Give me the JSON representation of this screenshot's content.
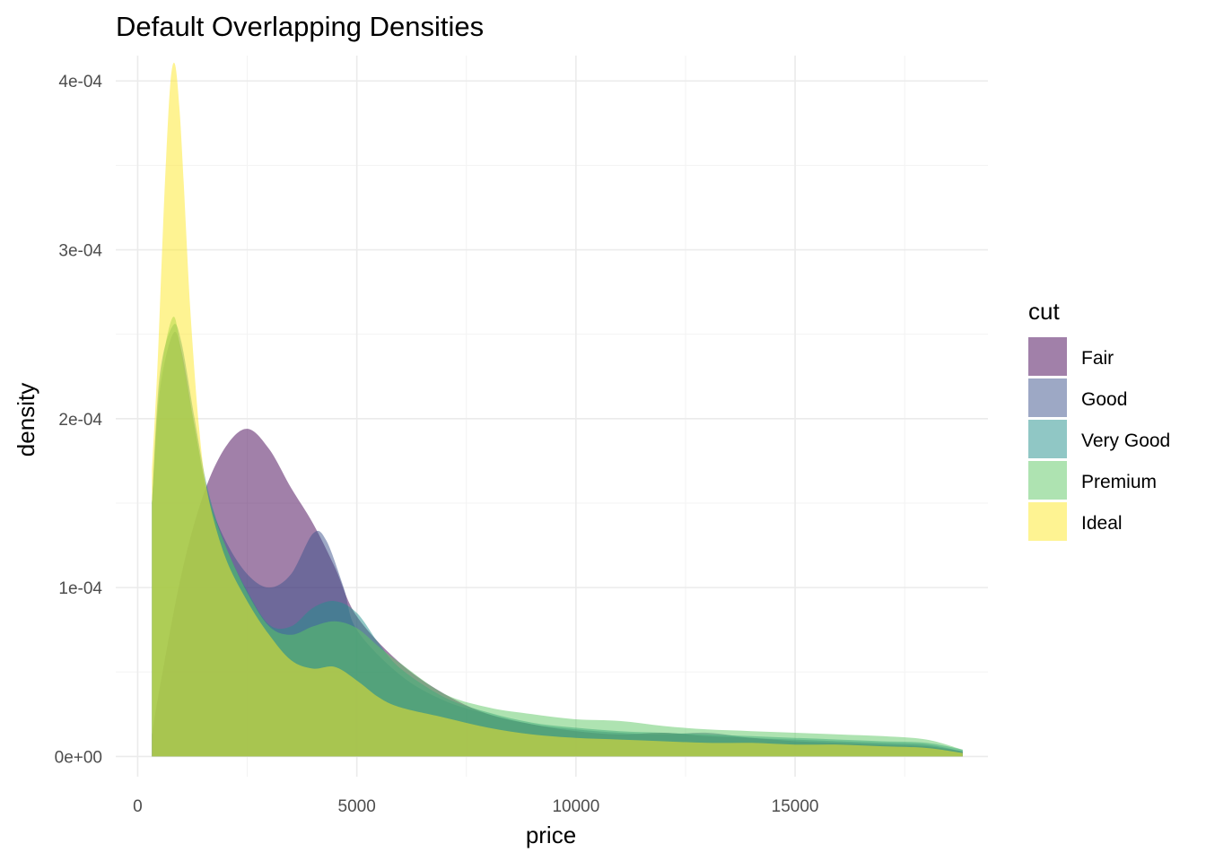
{
  "chart_data": {
    "type": "area",
    "title": "Default Overlapping Densities",
    "xlabel": "price",
    "ylabel": "density",
    "xlim": [
      -500,
      19400
    ],
    "ylim": [
      -1.2e-05,
      0.000415
    ],
    "x_ticks": [
      0,
      5000,
      10000,
      15000
    ],
    "x_tick_labels": [
      "0",
      "5000",
      "10000",
      "15000"
    ],
    "x_minor_ticks": [
      2500,
      7500,
      12500,
      17500
    ],
    "y_ticks": [
      0,
      0.0001,
      0.0002,
      0.0003,
      0.0004
    ],
    "y_tick_labels": [
      "0e+00",
      "1e-04",
      "2e-04",
      "3e-04",
      "4e-04"
    ],
    "y_minor_ticks": [
      5e-05,
      0.00015,
      0.00025,
      0.00035
    ],
    "grid": true,
    "legend": {
      "title": "cut",
      "position": "right"
    },
    "fill_opacity": 0.5,
    "series": [
      {
        "name": "Fair",
        "color": "#440154",
        "x": [
          326,
          500,
          1000,
          1500,
          2000,
          2500,
          3000,
          3500,
          4000,
          4500,
          5000,
          6000,
          7000,
          8000,
          9000,
          10000,
          11000,
          12000,
          13000,
          14000,
          15000,
          16000,
          17000,
          18000,
          18823
        ],
        "y": [
          1.3e-05,
          4e-05,
          0.000108,
          0.000155,
          0.000183,
          0.000194,
          0.000182,
          0.000159,
          0.000138,
          0.000112,
          8.3e-05,
          5.5e-05,
          3.7e-05,
          2.5e-05,
          1.9e-05,
          1.5e-05,
          1.3e-05,
          1.4e-05,
          1.2e-05,
          1.1e-05,
          9e-06,
          8e-06,
          7e-06,
          6e-06,
          3e-06
        ]
      },
      {
        "name": "Good",
        "color": "#3b528b",
        "x": [
          326,
          500,
          800,
          1000,
          1300,
          1600,
          2000,
          2500,
          3000,
          3500,
          4000,
          4300,
          4700,
          5000,
          6000,
          7000,
          8000,
          9000,
          10000,
          11000,
          12000,
          13000,
          14000,
          15000,
          16000,
          17000,
          18000,
          18823
        ],
        "y": [
          0.00015,
          0.000215,
          0.00025,
          0.00024,
          0.000195,
          0.000155,
          0.000128,
          0.000108,
          0.0001,
          0.000108,
          0.000132,
          0.000128,
          0.0001,
          7.5e-05,
          4.8e-05,
          3.3e-05,
          2.5e-05,
          1.9e-05,
          1.6e-05,
          1.4e-05,
          1.3e-05,
          1.4e-05,
          1.1e-05,
          1e-05,
          9e-06,
          8e-06,
          7e-06,
          3e-06
        ]
      },
      {
        "name": "Very Good",
        "color": "#21908c",
        "x": [
          326,
          500,
          800,
          1000,
          1300,
          1600,
          2000,
          2500,
          3000,
          3500,
          4000,
          4500,
          5000,
          5500,
          6000,
          7000,
          8000,
          9000,
          10000,
          11000,
          12000,
          13000,
          14000,
          15000,
          16000,
          17000,
          18000,
          18823
        ],
        "y": [
          0.00015,
          0.000225,
          0.000255,
          0.000245,
          0.0002,
          0.000158,
          0.000125,
          9.8e-05,
          7.8e-05,
          7.7e-05,
          8.8e-05,
          9.2e-05,
          8.5e-05,
          6.7e-05,
          5.2e-05,
          3.5e-05,
          2.6e-05,
          2e-05,
          1.7e-05,
          1.5e-05,
          1.4e-05,
          1.3e-05,
          1.2e-05,
          1.1e-05,
          1e-05,
          9e-06,
          8e-06,
          4e-06
        ]
      },
      {
        "name": "Premium",
        "color": "#5dc863",
        "x": [
          326,
          500,
          800,
          1000,
          1300,
          1600,
          2000,
          2500,
          3000,
          3500,
          4000,
          4500,
          5000,
          5500,
          6000,
          7000,
          8000,
          9000,
          10000,
          11000,
          12000,
          13000,
          14000,
          15000,
          16000,
          17000,
          18000,
          18823
        ],
        "y": [
          0.00015,
          0.00022,
          0.00026,
          0.000238,
          0.000195,
          0.000155,
          0.000125,
          9.7e-05,
          7.7e-05,
          7.2e-05,
          7.7e-05,
          8e-05,
          7.6e-05,
          6.5e-05,
          5.5e-05,
          3.7e-05,
          2.9e-05,
          2.5e-05,
          2.2e-05,
          2.1e-05,
          1.8e-05,
          1.6e-05,
          1.5e-05,
          1.4e-05,
          1.3e-05,
          1.2e-05,
          1e-05,
          4e-06
        ]
      },
      {
        "name": "Ideal",
        "color": "#fde725",
        "x": [
          326,
          450,
          550,
          650,
          750,
          850,
          950,
          1050,
          1200,
          1400,
          1600,
          2000,
          2500,
          3000,
          3500,
          4000,
          4500,
          5000,
          5500,
          6000,
          7000,
          8000,
          9000,
          10000,
          11000,
          12000,
          13000,
          14000,
          15000,
          16000,
          17000,
          18000,
          18823
        ],
        "y": [
          0.00017,
          0.00023,
          0.000295,
          0.000355,
          0.0004,
          0.00041,
          0.000385,
          0.00034,
          0.000265,
          0.000195,
          0.000155,
          0.000118,
          9.2e-05,
          7.2e-05,
          5.7e-05,
          5.2e-05,
          5.3e-05,
          4.5e-05,
          3.5e-05,
          2.9e-05,
          2.3e-05,
          1.7e-05,
          1.3e-05,
          1.1e-05,
          1e-05,
          9e-06,
          8e-06,
          8e-06,
          7e-06,
          7e-06,
          6e-06,
          5e-06,
          2e-06
        ]
      }
    ]
  }
}
